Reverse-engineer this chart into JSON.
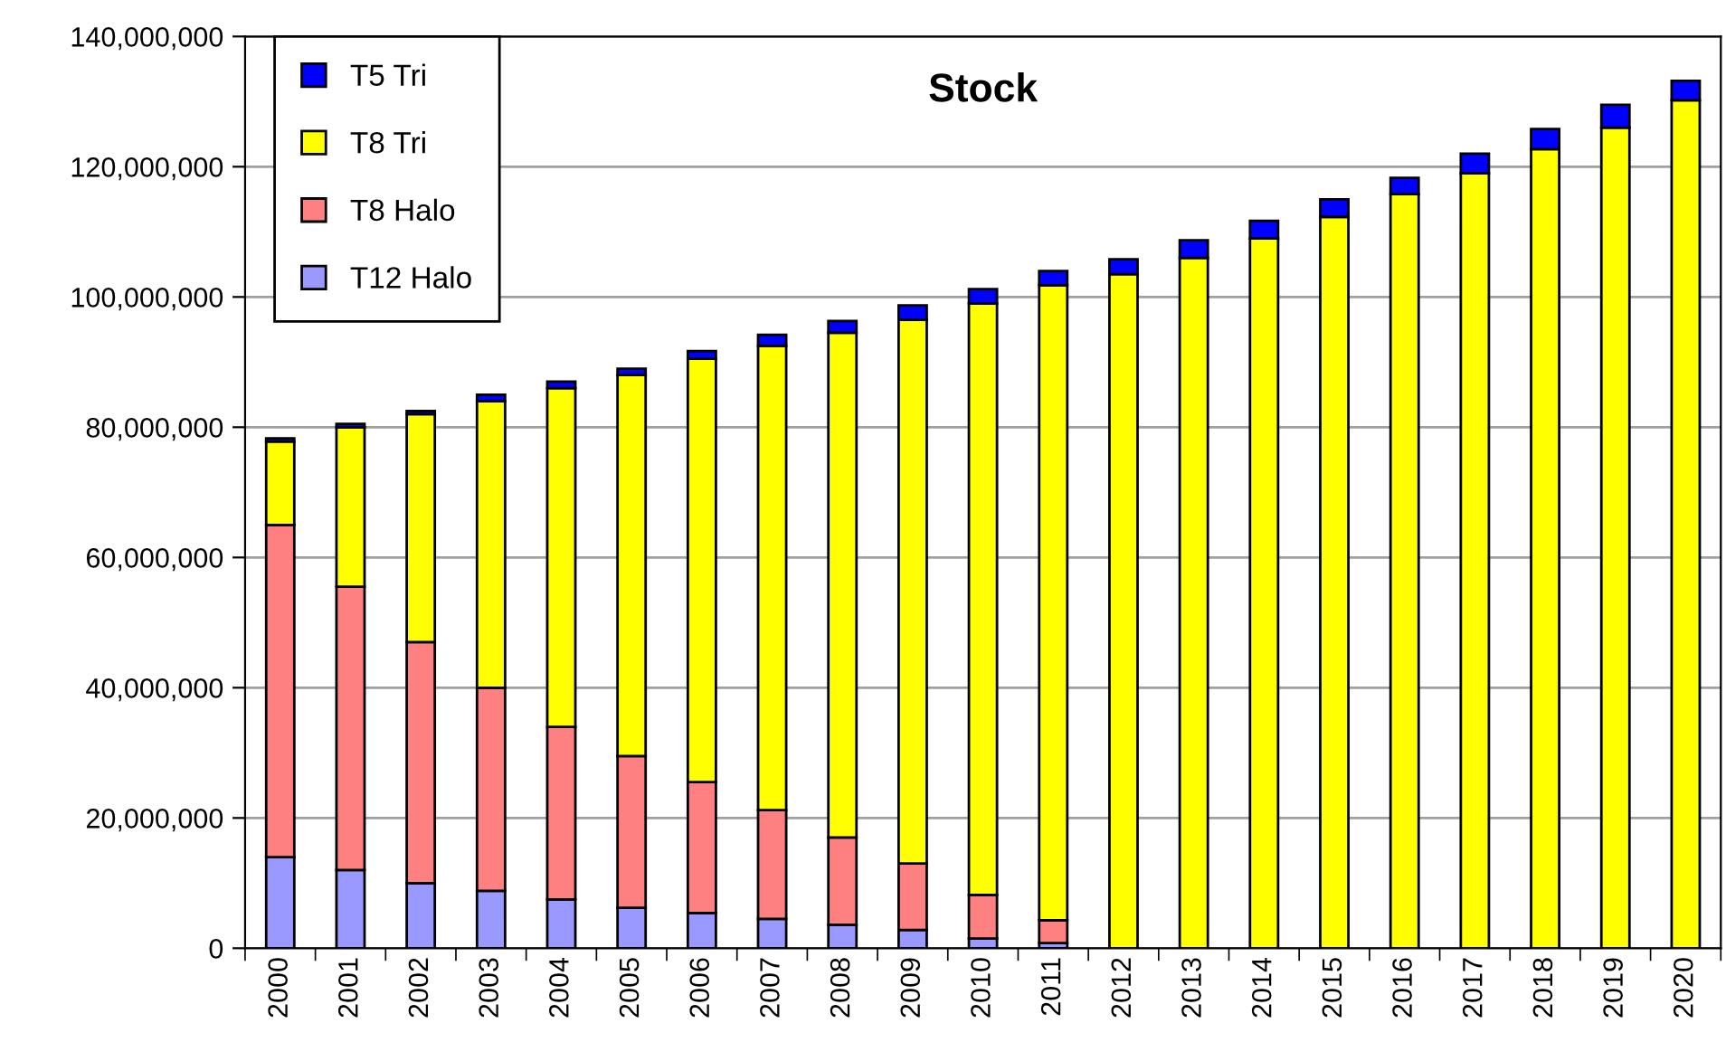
{
  "chart_data": {
    "type": "bar",
    "title": "Stock",
    "stacked": true,
    "grid": "y",
    "legend": "top left",
    "categories": [
      "2000",
      "2001",
      "2002",
      "2003",
      "2004",
      "2005",
      "2006",
      "2007",
      "2008",
      "2009",
      "2010",
      "2011",
      "2012",
      "2013",
      "2014",
      "2015",
      "2016",
      "2017",
      "2018",
      "2019",
      "2020"
    ],
    "series": [
      {
        "name": "T12 Halo",
        "color": "#9999ff",
        "values": [
          14000000,
          12000000,
          10000000,
          8800000,
          7500000,
          6200000,
          5400000,
          4500000,
          3600000,
          2800000,
          1500000,
          800000,
          0,
          0,
          0,
          0,
          0,
          0,
          0,
          0,
          0
        ]
      },
      {
        "name": "T8 Halo",
        "color": "#ff8080",
        "values": [
          51000000,
          43500000,
          37000000,
          31200000,
          26500000,
          23300000,
          20100000,
          16700000,
          13400000,
          10200000,
          6700000,
          3500000,
          0,
          0,
          0,
          0,
          0,
          0,
          0,
          0,
          0
        ]
      },
      {
        "name": "T8 Tri",
        "color": "#ffff00",
        "values": [
          12800000,
          24500000,
          35000000,
          44000000,
          52000000,
          58500000,
          65000000,
          71300000,
          77500000,
          83500000,
          90800000,
          97500000,
          103500000,
          106000000,
          109000000,
          112300000,
          115800000,
          119000000,
          122700000,
          126000000,
          130200000
        ]
      },
      {
        "name": "T5 Tri",
        "color": "#0000ff",
        "values": [
          500000,
          500000,
          500000,
          1000000,
          1000000,
          1000000,
          1200000,
          1700000,
          1800000,
          2200000,
          2200000,
          2200000,
          2300000,
          2700000,
          2700000,
          2700000,
          2500000,
          3000000,
          3100000,
          3500000,
          3000000
        ]
      }
    ],
    "ylim": [
      0,
      140000000
    ],
    "yticks": [
      {
        "value": 0,
        "label": "0"
      },
      {
        "value": 20000000,
        "label": "20,000,000"
      },
      {
        "value": 40000000,
        "label": "40,000,000"
      },
      {
        "value": 60000000,
        "label": "60,000,000"
      },
      {
        "value": 80000000,
        "label": "80,000,000"
      },
      {
        "value": 100000000,
        "label": "100,000,000"
      },
      {
        "value": 120000000,
        "label": "120,000,000"
      },
      {
        "value": 140000000,
        "label": "140,000,000"
      }
    ]
  }
}
